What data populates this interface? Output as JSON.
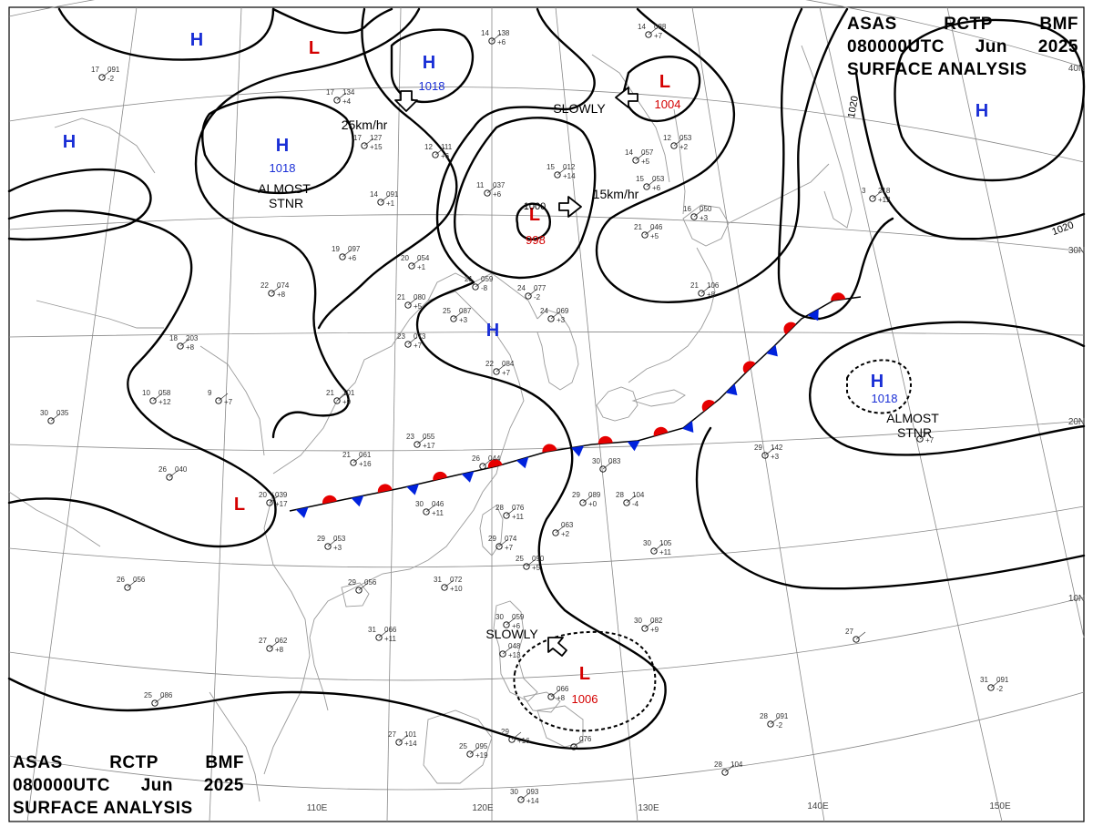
{
  "header": {
    "agency": "ASAS",
    "station": "RCTP",
    "office": "BMF",
    "time": "080000UTC",
    "month": "Jun",
    "year": "2025",
    "product": "SURFACE ANALYSIS"
  },
  "colors": {
    "high": "#1a2fd6",
    "low": "#d40000",
    "warm_front": "#e60000",
    "cold_front": "#0022dd",
    "isobar": "#000000",
    "grid": "#888888",
    "coast": "#9a9a9a"
  },
  "pressure_systems": [
    {
      "id": "h1",
      "type": "H",
      "label": "H",
      "pressure": ""
    },
    {
      "id": "h2",
      "type": "H",
      "label": "H",
      "pressure": ""
    },
    {
      "id": "h3",
      "type": "H",
      "label": "H",
      "pressure": "1018",
      "note": "ALMOST STNR"
    },
    {
      "id": "h4",
      "type": "H",
      "label": "H",
      "pressure": "1018"
    },
    {
      "id": "h5",
      "type": "H",
      "label": "H",
      "pressure": ""
    },
    {
      "id": "h6",
      "type": "H",
      "label": "H",
      "pressure": ""
    },
    {
      "id": "h7",
      "type": "H",
      "label": "H",
      "pressure": "1018",
      "note": "ALMOST STNR"
    },
    {
      "id": "l1",
      "type": "L",
      "label": "L",
      "pressure": ""
    },
    {
      "id": "l2",
      "type": "L",
      "label": "L",
      "pressure": "1004"
    },
    {
      "id": "l3",
      "type": "L",
      "label": "L",
      "pressure": "998"
    },
    {
      "id": "l4",
      "type": "L",
      "label": "L",
      "pressure": ""
    },
    {
      "id": "l5",
      "type": "L",
      "label": "L",
      "pressure": "1006"
    }
  ],
  "movement_labels": [
    {
      "id": "m1",
      "text": "25km/hr"
    },
    {
      "id": "m2",
      "text": "SLOWLY"
    },
    {
      "id": "m3",
      "text": "15km/hr"
    },
    {
      "id": "m4",
      "text": "SLOWLY"
    }
  ],
  "isobar_labels": [
    {
      "id": "i1",
      "text": "1020"
    },
    {
      "id": "i2",
      "text": "1020"
    },
    {
      "id": "i3",
      "text": "1000"
    }
  ],
  "axis_labels": {
    "lon": [
      "110E",
      "120E",
      "130E",
      "140E",
      "150E"
    ],
    "lat": [
      "40N",
      "30N",
      "20N",
      "10N"
    ]
  },
  "stations": [
    {
      "id": "s1",
      "t": "17",
      "p": "091",
      "c": "-2"
    },
    {
      "id": "s2",
      "t": "17",
      "p": "134",
      "c": "+4"
    },
    {
      "id": "s3",
      "t": "14",
      "p": "138",
      "c": "+6"
    },
    {
      "id": "s4",
      "t": "17",
      "p": "127",
      "c": "+15"
    },
    {
      "id": "s5",
      "t": "12",
      "p": "111",
      "c": "+6"
    },
    {
      "id": "s6",
      "t": "15",
      "p": "012",
      "c": "+14"
    },
    {
      "id": "s7",
      "t": "11",
      "p": "037",
      "c": "+6"
    },
    {
      "id": "s8",
      "t": "14",
      "p": "091",
      "c": "+1"
    },
    {
      "id": "s9",
      "t": "19",
      "p": "097",
      "c": "+6"
    },
    {
      "id": "s10",
      "t": "20",
      "p": "054",
      "c": "+1"
    },
    {
      "id": "s11",
      "t": "21",
      "p": "080",
      "c": "+5"
    },
    {
      "id": "s12",
      "t": "22",
      "p": "074",
      "c": "+8"
    },
    {
      "id": "s13",
      "t": "25",
      "p": "087",
      "c": "+3"
    },
    {
      "id": "s14",
      "t": "21",
      "p": "059",
      "c": "-8"
    },
    {
      "id": "s15",
      "t": "24",
      "p": "077",
      "c": "-2"
    },
    {
      "id": "s16",
      "t": "24",
      "p": "069",
      "c": "+3"
    },
    {
      "id": "s17",
      "t": "21",
      "p": "106",
      "c": "+8"
    },
    {
      "id": "s18",
      "t": "21",
      "p": "046",
      "c": "+5"
    },
    {
      "id": "s19",
      "t": "16",
      "p": "050",
      "c": "+3"
    },
    {
      "id": "s20",
      "t": "14",
      "p": "057",
      "c": "+5"
    },
    {
      "id": "s21",
      "t": "15",
      "p": "053",
      "c": "+6"
    },
    {
      "id": "s22",
      "t": "12",
      "p": "053",
      "c": "+2"
    },
    {
      "id": "s23",
      "t": "18",
      "p": "203",
      "c": "+8"
    },
    {
      "id": "s24",
      "t": "23",
      "p": "073",
      "c": "+7"
    },
    {
      "id": "s25",
      "t": "22",
      "p": "084",
      "c": "+7"
    },
    {
      "id": "s26",
      "t": "10",
      "p": "058",
      "c": "+12"
    },
    {
      "id": "s27",
      "t": "9",
      "p": "",
      "c": "+7"
    },
    {
      "id": "s28",
      "t": "21",
      "p": "101",
      "c": "+9"
    },
    {
      "id": "s29",
      "t": "30",
      "p": "035",
      "c": ""
    },
    {
      "id": "s30",
      "t": "23",
      "p": "055",
      "c": "+17"
    },
    {
      "id": "s31",
      "t": "21",
      "p": "061",
      "c": "+16"
    },
    {
      "id": "s32",
      "t": "26",
      "p": "044",
      "c": ""
    },
    {
      "id": "s33",
      "t": "26",
      "p": "040",
      "c": ""
    },
    {
      "id": "s34",
      "t": "20",
      "p": "039",
      "c": "+17"
    },
    {
      "id": "s35",
      "t": "30",
      "p": "046",
      "c": "+11"
    },
    {
      "id": "s36",
      "t": "28",
      "p": "076",
      "c": "+11"
    },
    {
      "id": "s37",
      "t": "30",
      "p": "083",
      "c": ""
    },
    {
      "id": "s38",
      "t": "29",
      "p": "089",
      "c": "+0"
    },
    {
      "id": "s39",
      "t": "28",
      "p": "104",
      "c": "-4"
    },
    {
      "id": "s40",
      "t": "29",
      "p": "053",
      "c": "+3"
    },
    {
      "id": "s41",
      "t": "29",
      "p": "074",
      "c": "+7"
    },
    {
      "id": "s42",
      "t": "",
      "p": "063",
      "c": "+2"
    },
    {
      "id": "s43",
      "t": "25",
      "p": "090",
      "c": "+5"
    },
    {
      "id": "s44",
      "t": "29",
      "p": "056",
      "c": ""
    },
    {
      "id": "s45",
      "t": "31",
      "p": "072",
      "c": "+10"
    },
    {
      "id": "s46",
      "t": "26",
      "p": "056",
      "c": ""
    },
    {
      "id": "s47",
      "t": "30",
      "p": "105",
      "c": "+11"
    },
    {
      "id": "s48",
      "t": "29",
      "p": "142",
      "c": "+3"
    },
    {
      "id": "s49",
      "t": "27",
      "p": "062",
      "c": "+8"
    },
    {
      "id": "s50",
      "t": "31",
      "p": "066",
      "c": "+11"
    },
    {
      "id": "s51",
      "t": "30",
      "p": "082",
      "c": "+9"
    },
    {
      "id": "s52",
      "t": "30",
      "p": "059",
      "c": "+6"
    },
    {
      "id": "s53",
      "t": "",
      "p": "048",
      "c": "+13"
    },
    {
      "id": "s54",
      "t": "25",
      "p": "086",
      "c": ""
    },
    {
      "id": "s55",
      "t": "",
      "p": "066",
      "c": "+8"
    },
    {
      "id": "s56",
      "t": "27",
      "p": "",
      "c": ""
    },
    {
      "id": "s57",
      "t": "31",
      "p": "091",
      "c": "-2"
    },
    {
      "id": "s58",
      "t": "28",
      "p": "091",
      "c": "-2"
    },
    {
      "id": "s59",
      "t": "27",
      "p": "101",
      "c": "+14"
    },
    {
      "id": "s60",
      "t": "25",
      "p": "095",
      "c": "+19"
    },
    {
      "id": "s61",
      "t": "29",
      "p": "",
      "c": "+16"
    },
    {
      "id": "s62",
      "t": "",
      "p": "076",
      "c": ""
    },
    {
      "id": "s63",
      "t": "30",
      "p": "093",
      "c": "+14"
    },
    {
      "id": "s64",
      "t": "28",
      "p": "104",
      "c": ""
    },
    {
      "id": "s65",
      "t": "14",
      "p": "088",
      "c": "+7"
    },
    {
      "id": "s66",
      "t": "3",
      "p": "218",
      "c": "+12"
    },
    {
      "id": "s67",
      "t": "",
      "p": "",
      "c": "+7"
    }
  ]
}
